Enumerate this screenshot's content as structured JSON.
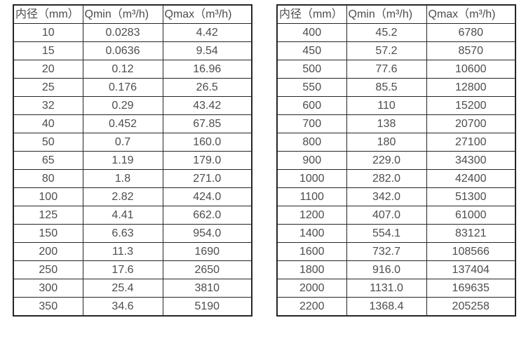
{
  "page": {
    "background": "#ffffff",
    "text_color": "#4d4d4d",
    "border_color": "#262626"
  },
  "tables": [
    {
      "name": "flow-rate-table-small-diameters",
      "headers": [
        "内径（mm）",
        "Qmin（m³/h)",
        "Qmax（m³/h)"
      ],
      "rows": [
        [
          "10",
          "0.0283",
          "4.42"
        ],
        [
          "15",
          "0.0636",
          "9.54"
        ],
        [
          "20",
          "0.12",
          "16.96"
        ],
        [
          "25",
          "0.176",
          "26.5"
        ],
        [
          "32",
          "0.29",
          "43.42"
        ],
        [
          "40",
          "0.452",
          "67.85"
        ],
        [
          "50",
          "0.7",
          "160.0"
        ],
        [
          "65",
          "1.19",
          "179.0"
        ],
        [
          "80",
          "1.8",
          "271.0"
        ],
        [
          "100",
          "2.82",
          "424.0"
        ],
        [
          "125",
          "4.41",
          "662.0"
        ],
        [
          "150",
          "6.63",
          "954.0"
        ],
        [
          "200",
          "11.3",
          "1690"
        ],
        [
          "250",
          "17.6",
          "2650"
        ],
        [
          "300",
          "25.4",
          "3810"
        ],
        [
          "350",
          "34.6",
          "5190"
        ]
      ]
    },
    {
      "name": "flow-rate-table-large-diameters",
      "headers": [
        "内径（mm）",
        "Qmin（m³/h)",
        "Qmax（m³/h)"
      ],
      "rows": [
        [
          "400",
          "45.2",
          "6780"
        ],
        [
          "450",
          "57.2",
          "8570"
        ],
        [
          "500",
          "77.6",
          "10600"
        ],
        [
          "550",
          "85.5",
          "12800"
        ],
        [
          "600",
          "110",
          "15200"
        ],
        [
          "700",
          "138",
          "20700"
        ],
        [
          "800",
          "180",
          "27100"
        ],
        [
          "900",
          "229.0",
          "34300"
        ],
        [
          "1000",
          "282.0",
          "42400"
        ],
        [
          "1100",
          "342.0",
          "51300"
        ],
        [
          "1200",
          "407.0",
          "61000"
        ],
        [
          "1400",
          "554.1",
          "83121"
        ],
        [
          "1600",
          "732.7",
          "108566"
        ],
        [
          "1800",
          "916.0",
          "137404"
        ],
        [
          "2000",
          "1131.0",
          "169635"
        ],
        [
          "2200",
          "1368.4",
          "205258"
        ]
      ]
    }
  ]
}
